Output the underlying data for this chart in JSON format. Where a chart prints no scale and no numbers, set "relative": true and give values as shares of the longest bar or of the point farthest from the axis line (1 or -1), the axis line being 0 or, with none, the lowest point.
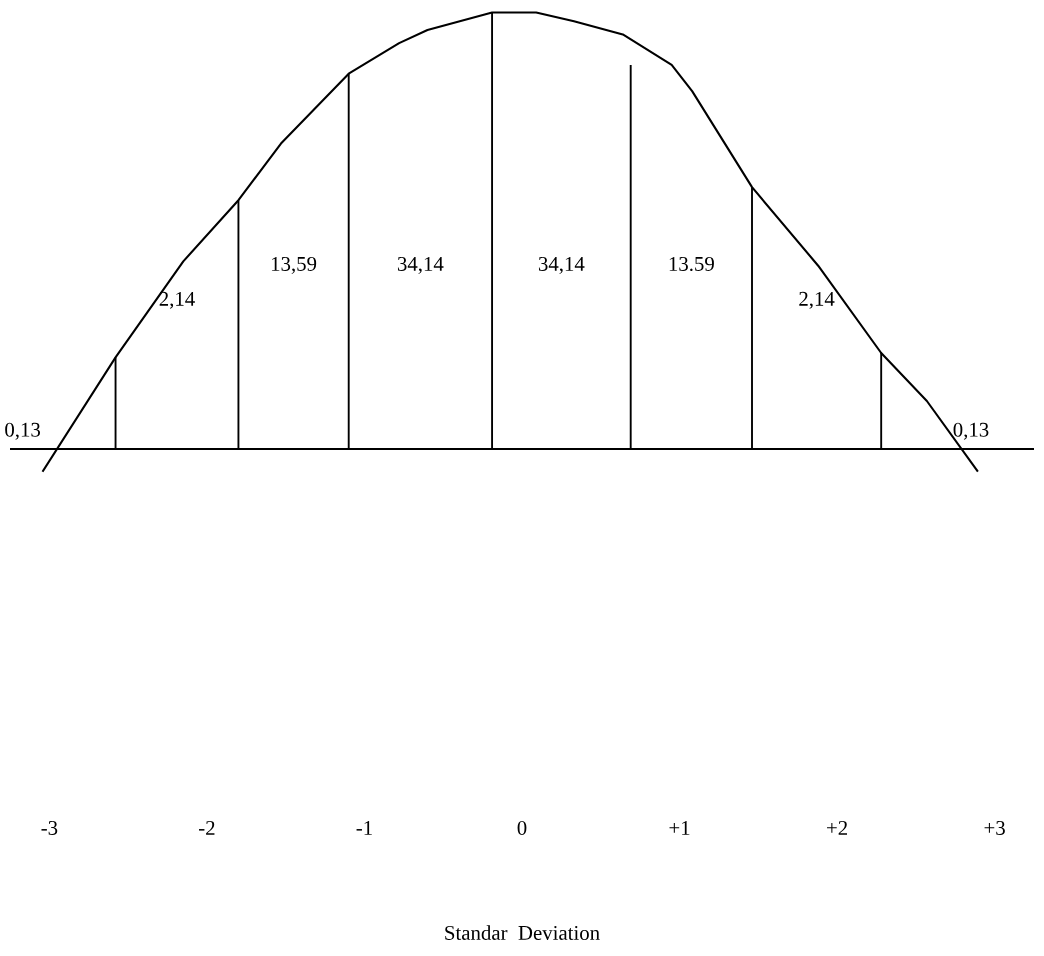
{
  "chart_data": {
    "type": "line",
    "relative": true,
    "xlabel": "Standar  Deviation",
    "xlim": [
      -3.25,
      3.25
    ],
    "xticks": [
      -3,
      -2,
      -1,
      0,
      {
        "value": 1,
        "label": "+1"
      },
      {
        "value": 2,
        "label": "+2"
      },
      {
        "value": 3,
        "label": "+3"
      }
    ],
    "grid": false,
    "legend": false,
    "marker": "none",
    "line_style": "solid",
    "series": [
      {
        "color": "#000000",
        "x": [
          -3.04,
          -2.58,
          -2.15,
          -1.8,
          -1.53,
          -1.1,
          -0.78,
          -0.6,
          -0.19,
          0.09,
          0.33,
          0.64,
          0.95,
          1.08,
          1.46,
          1.88,
          2.28,
          2.57,
          2.89
        ],
        "values": [
          -0.05,
          0.21,
          0.43,
          0.57,
          0.7,
          0.86,
          0.93,
          0.96,
          1.0,
          1.0,
          0.98,
          0.95,
          0.88,
          0.82,
          0.6,
          0.42,
          0.22,
          0.11,
          -0.05
        ]
      },
      {
        "type": "bar",
        "color": "#000000",
        "x": [
          -2.58,
          -1.8,
          -1.1,
          -0.19,
          0.69,
          1.46,
          2.28
        ],
        "values": [
          0.21,
          0.57,
          0.86,
          1.0,
          0.88,
          0.6,
          0.22
        ]
      }
    ],
    "ref_lines": [
      {
        "axis": "y",
        "value": 0,
        "color": "#000000"
      }
    ],
    "annotations": [
      "0,13",
      "2,14",
      "13,59",
      "34,14",
      "34,14",
      "13.59",
      "2,14",
      "0,13"
    ]
  }
}
